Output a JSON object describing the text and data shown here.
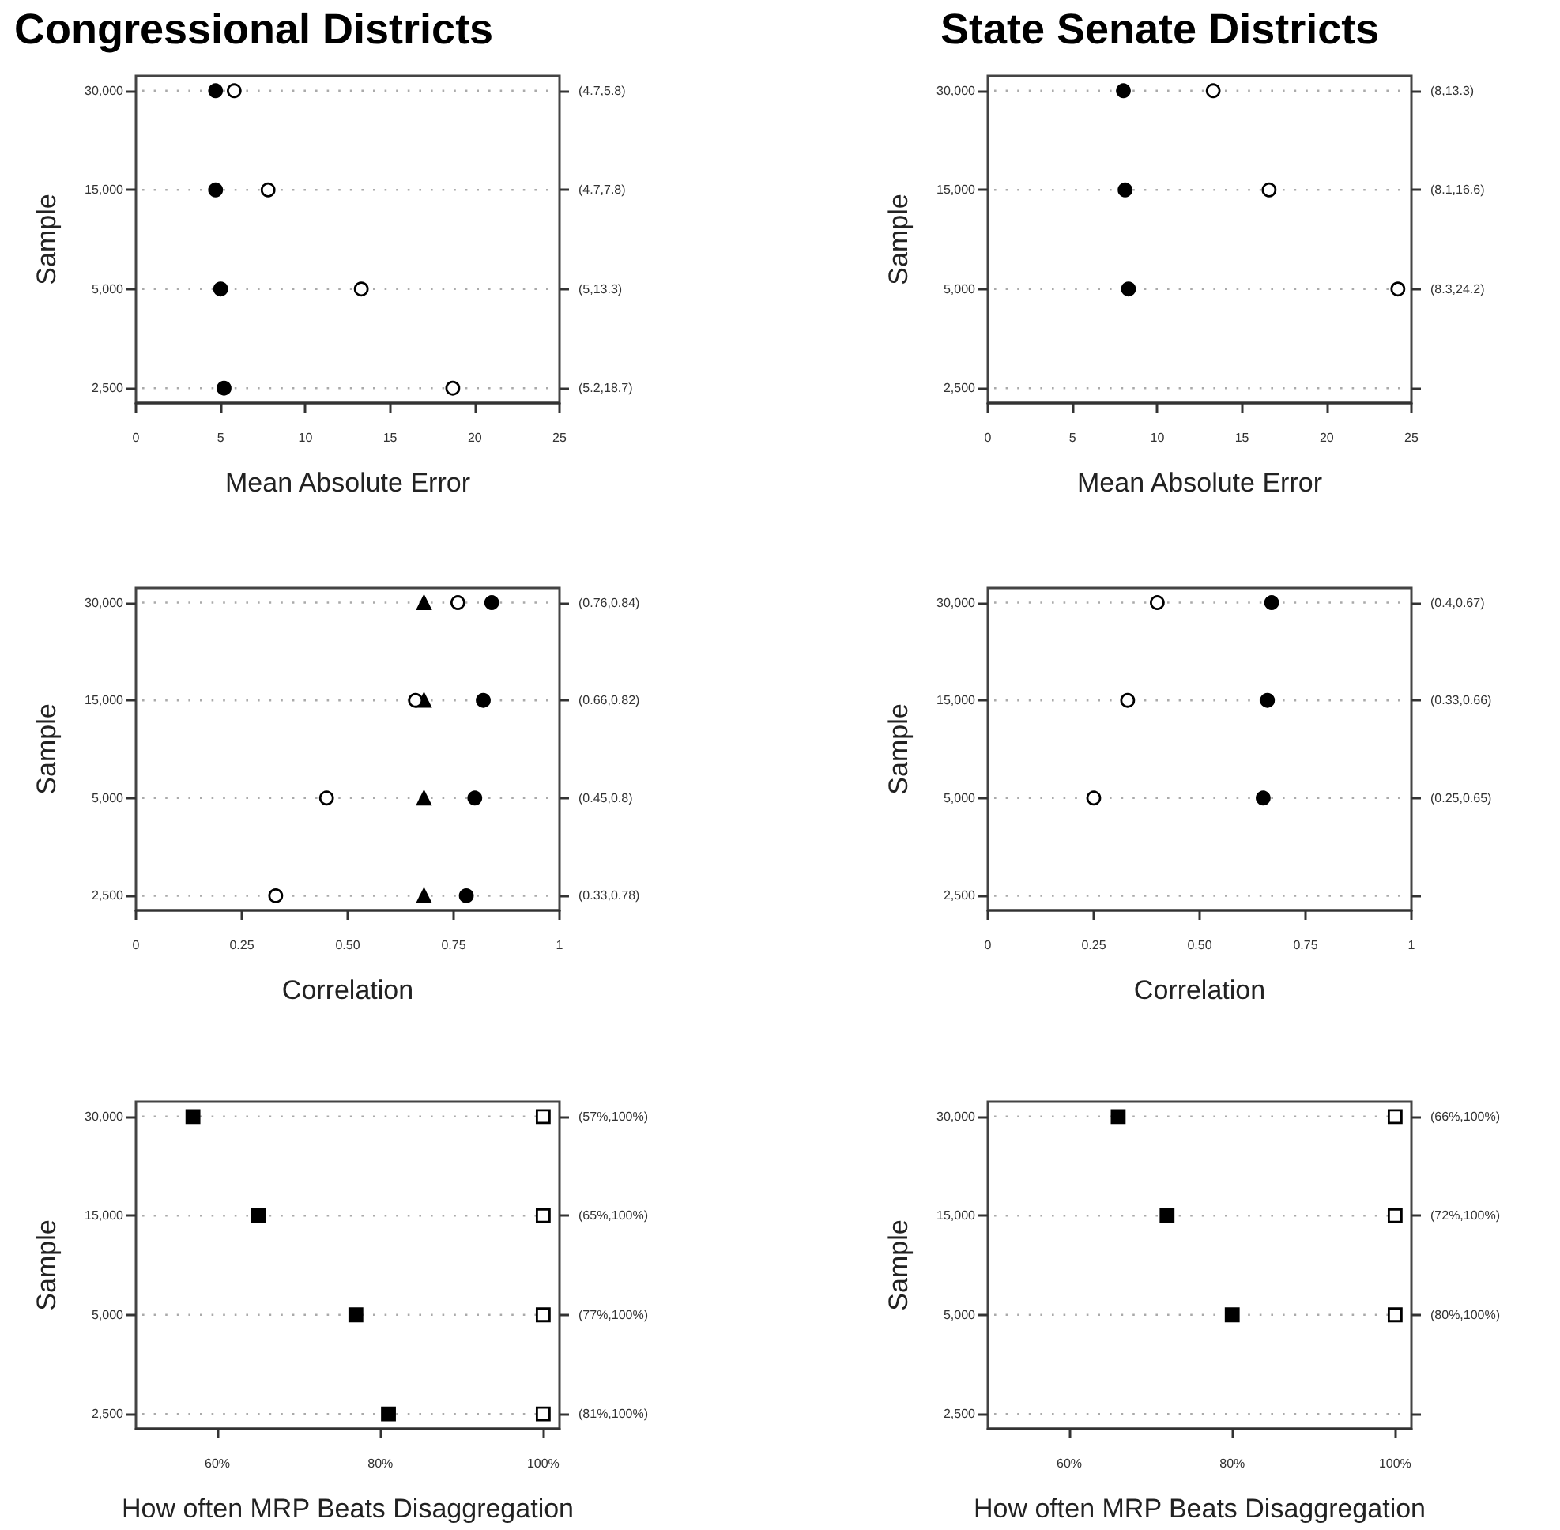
{
  "chart_data": [
    {
      "type": "scatter",
      "title": "Congressional Districts",
      "orientation": "horizontal",
      "xlabel": "Mean Absolute Error",
      "ylabel": "Sample",
      "categories": [
        "30,000",
        "15,000",
        "5,000",
        "2,500"
      ],
      "y2_categories": [
        "(4.7,5.8)",
        "(4.7,7.8)",
        "(5,13.3)",
        "(5.2,18.7)"
      ],
      "series": [
        {
          "color": "#000000",
          "marker": "circle",
          "values": [
            4.7,
            4.7,
            5,
            5.2
          ]
        },
        {
          "color": "#ffffff",
          "marker": "circle",
          "values": [
            5.8,
            7.8,
            13.3,
            18.7
          ]
        }
      ],
      "xlim": [
        0,
        25
      ],
      "xticks": [
        0,
        5,
        10,
        15,
        20,
        25
      ],
      "grid": "y"
    },
    {
      "type": "scatter",
      "title": "State Senate Districts",
      "orientation": "horizontal",
      "xlabel": "Mean Absolute Error",
      "ylabel": "Sample",
      "categories": [
        "30,000",
        "15,000",
        "5,000",
        "2,500"
      ],
      "y2_categories": [
        "(8,13.3)",
        "(8.1,16.6)",
        "(8.3,24.2)",
        null
      ],
      "series": [
        {
          "color": "#000000",
          "marker": "circle",
          "values": [
            8,
            8.1,
            8.3,
            null
          ]
        },
        {
          "color": "#ffffff",
          "marker": "circle",
          "values": [
            13.3,
            16.6,
            24.2,
            null
          ]
        }
      ],
      "xlim": [
        0,
        25
      ],
      "xticks": [
        0,
        5,
        10,
        15,
        20,
        25
      ],
      "grid": "y"
    },
    {
      "type": "scatter",
      "orientation": "horizontal",
      "xlabel": "Correlation",
      "ylabel": "Sample",
      "categories": [
        "30,000",
        "15,000",
        "5,000",
        "2,500"
      ],
      "y2_categories": [
        "(0.76,0.84)",
        "(0.66,0.82)",
        "(0.45,0.8)",
        "(0.33,0.78)"
      ],
      "series": [
        {
          "color": "#000000",
          "marker": "triangle",
          "values": [
            0.68,
            0.68,
            0.68,
            0.68
          ]
        },
        {
          "color": "#ffffff",
          "marker": "circle",
          "values": [
            0.76,
            0.66,
            0.45,
            0.33
          ]
        },
        {
          "color": "#000000",
          "marker": "circle",
          "values": [
            0.84,
            0.82,
            0.8,
            0.78
          ]
        }
      ],
      "xlim": [
        0,
        1
      ],
      "xticks": [
        0,
        0.25,
        {
          "value": 0.5,
          "label": "0.50"
        },
        0.75,
        1
      ],
      "grid": "y"
    },
    {
      "type": "scatter",
      "orientation": "horizontal",
      "xlabel": "Correlation",
      "ylabel": "Sample",
      "categories": [
        "30,000",
        "15,000",
        "5,000",
        "2,500"
      ],
      "y2_categories": [
        "(0.4,0.67)",
        "(0.33,0.66)",
        "(0.25,0.65)",
        null
      ],
      "series": [
        {
          "color": "#ffffff",
          "marker": "circle",
          "values": [
            0.4,
            0.33,
            0.25,
            null
          ]
        },
        {
          "color": "#000000",
          "marker": "circle",
          "values": [
            0.67,
            0.66,
            0.65,
            null
          ]
        }
      ],
      "xlim": [
        0,
        1
      ],
      "xticks": [
        0,
        0.25,
        {
          "value": 0.5,
          "label": "0.50"
        },
        0.75,
        1
      ],
      "grid": "y"
    },
    {
      "type": "scatter",
      "orientation": "horizontal",
      "xlabel": "How often MRP Beats Disaggregation",
      "ylabel": "Sample",
      "categories": [
        "30,000",
        "15,000",
        "5,000",
        "2,500"
      ],
      "y2_categories": [
        "(57%,100%)",
        "(65%,100%)",
        "(77%,100%)",
        "(81%,100%)"
      ],
      "series": [
        {
          "color": "#000000",
          "marker": "square",
          "values": [
            57,
            65,
            77,
            81
          ]
        },
        {
          "color": "#ffffff",
          "marker": "square",
          "values": [
            100,
            100,
            100,
            100
          ]
        }
      ],
      "xlim": [
        50,
        102
      ],
      "xticks": [
        {
          "value": 60,
          "label": "60%"
        },
        {
          "value": 80,
          "label": "80%"
        },
        {
          "value": 100,
          "label": "100%"
        }
      ],
      "grid": "y"
    },
    {
      "type": "scatter",
      "orientation": "horizontal",
      "xlabel": "How often MRP Beats Disaggregation",
      "ylabel": "Sample",
      "categories": [
        "30,000",
        "15,000",
        "5,000",
        "2,500"
      ],
      "y2_categories": [
        "(66%,100%)",
        "(72%,100%)",
        "(80%,100%)",
        null
      ],
      "series": [
        {
          "color": "#000000",
          "marker": "square",
          "values": [
            66,
            72,
            80,
            null
          ]
        },
        {
          "color": "#ffffff",
          "marker": "square",
          "values": [
            100,
            100,
            100,
            null
          ]
        }
      ],
      "xlim": [
        50,
        102
      ],
      "xticks": [
        {
          "value": 60,
          "label": "60%"
        },
        {
          "value": 80,
          "label": "80%"
        },
        {
          "value": 100,
          "label": "100%"
        }
      ],
      "grid": "y"
    }
  ]
}
